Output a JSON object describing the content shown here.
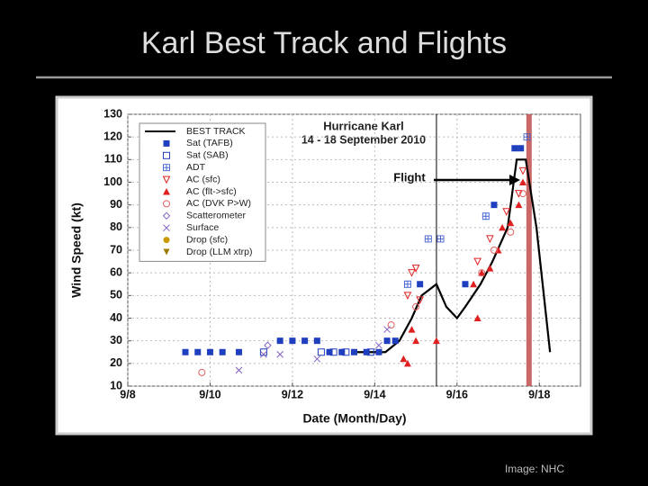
{
  "slide_title": "Karl Best Track and Flights",
  "caption": "Image: NHC",
  "chart_data": {
    "type": "scatter",
    "title": "Hurricane Karl",
    "subtitle": "14 - 18 September 2010",
    "annotation": "Flight",
    "x_label": "Date (Month/Day)",
    "y_label": "Wind Speed (kt)",
    "xlim": [
      8,
      19
    ],
    "ylim": [
      10,
      130
    ],
    "xticks": [
      {
        "value": 8,
        "label": "9/8"
      },
      {
        "value": 10,
        "label": "9/10"
      },
      {
        "value": 12,
        "label": "9/12"
      },
      {
        "value": 14,
        "label": "9/14"
      },
      {
        "value": 16,
        "label": "9/16"
      },
      {
        "value": 18,
        "label": "9/18"
      }
    ],
    "yticks": [
      10,
      20,
      30,
      40,
      50,
      60,
      70,
      80,
      90,
      100,
      110,
      120,
      130
    ],
    "grid": true,
    "legend": "upper left",
    "vlines": [
      {
        "x": 15.5,
        "color": "#000000"
      },
      {
        "x": 17.75,
        "color": "#c0504d"
      }
    ],
    "series": [
      {
        "name": "BEST TRACK",
        "marker": "line",
        "color": "#000000",
        "x": [
          13.45,
          14.26,
          14.6,
          14.9,
          15.14,
          15.5,
          15.74,
          16.0,
          16.2,
          16.57,
          16.86,
          17.23,
          17.45,
          17.67,
          17.93,
          18.26
        ],
        "values": [
          25,
          25,
          30,
          40,
          50,
          55,
          45,
          40,
          45,
          55,
          65,
          80,
          110,
          110,
          80,
          25
        ]
      },
      {
        "name": "Sat (TAFB)",
        "marker": "square-filled",
        "color": "#1f3fbf",
        "x": [
          9.4,
          9.7,
          10.0,
          10.3,
          10.7,
          11.7,
          12.0,
          12.3,
          12.6,
          12.9,
          13.2,
          13.5,
          13.8,
          14.1,
          14.3,
          14.5,
          15.1,
          16.2,
          16.9,
          17.4,
          17.55
        ],
        "values": [
          25,
          25,
          25,
          25,
          25,
          30,
          30,
          30,
          30,
          25,
          25,
          25,
          25,
          25,
          30,
          30,
          55,
          55,
          90,
          115,
          115
        ]
      },
      {
        "name": "Sat (SAB)",
        "marker": "square-open",
        "color": "#1f3fbf",
        "x": [
          11.3,
          12.7,
          13.0,
          13.3,
          13.9
        ],
        "values": [
          25,
          25,
          25,
          25,
          25
        ]
      },
      {
        "name": "ADT",
        "marker": "adt",
        "color": "#3f5fcf",
        "x": [
          14.8,
          15.3,
          15.6,
          16.7,
          17.7
        ],
        "values": [
          55,
          75,
          75,
          85,
          120
        ]
      },
      {
        "name": "AC (sfc)",
        "marker": "triangle-open",
        "color": "#e02020",
        "x": [
          14.8,
          14.9,
          15.0,
          15.1,
          16.5,
          16.8,
          17.2,
          17.5,
          17.6
        ],
        "values": [
          50,
          60,
          62,
          48,
          65,
          75,
          87,
          95,
          105
        ]
      },
      {
        "name": "AC (flt->sfc)",
        "marker": "triangle-filled",
        "color": "#e02020",
        "x": [
          14.7,
          14.8,
          14.9,
          15.0,
          15.5,
          16.4,
          16.5,
          16.6,
          16.8,
          17.0,
          17.1,
          17.3,
          17.5,
          17.6
        ],
        "values": [
          22,
          20,
          35,
          30,
          30,
          55,
          40,
          60,
          62,
          70,
          80,
          82,
          90,
          100
        ]
      },
      {
        "name": "AC (DVK P>W)",
        "marker": "circle-open",
        "color": "#e06060",
        "x": [
          9.8,
          14.4,
          15.0,
          16.6,
          16.9,
          17.3,
          17.6
        ],
        "values": [
          16,
          37,
          45,
          60,
          70,
          78,
          95
        ]
      },
      {
        "name": "Scatterometer",
        "marker": "diamond-open",
        "color": "#8060c0",
        "x": [
          11.4
        ],
        "values": [
          28
        ]
      },
      {
        "name": "Surface",
        "marker": "x",
        "color": "#8060c0",
        "x": [
          10.7,
          11.3,
          11.7,
          12.6,
          14.1,
          14.3
        ],
        "values": [
          17,
          24,
          24,
          22,
          28,
          35
        ]
      },
      {
        "name": "Drop (sfc)",
        "marker": "circle-filled",
        "color": "#c89a00",
        "x": [],
        "values": []
      },
      {
        "name": "Drop (LLM xtrp)",
        "marker": "triangle-down-filled",
        "color": "#a07800",
        "x": [],
        "values": []
      }
    ]
  }
}
